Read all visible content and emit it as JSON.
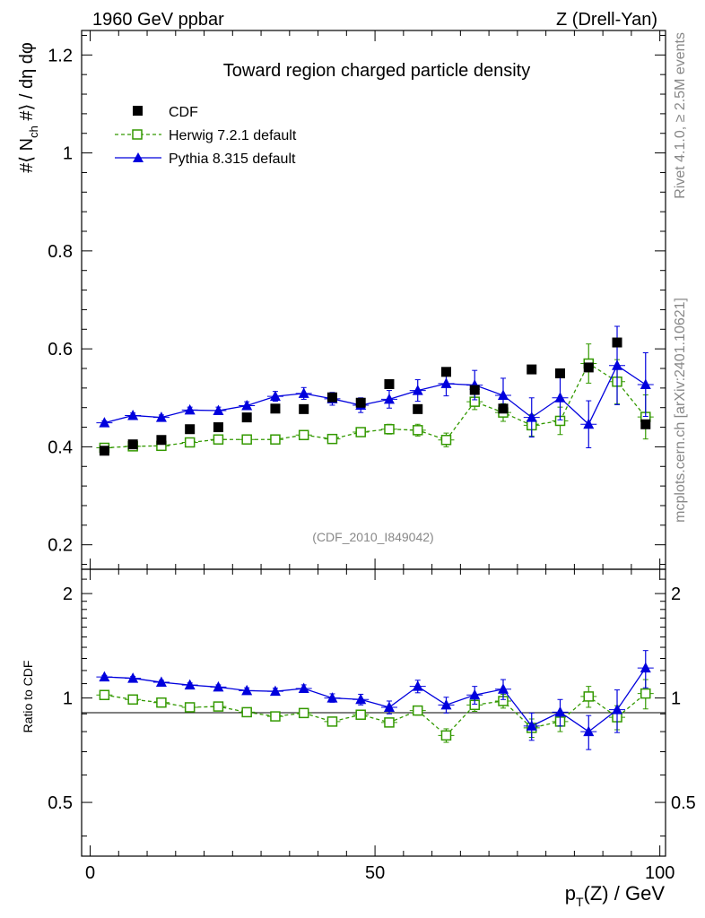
{
  "header": {
    "energy_label": "1960 GeV ppbar",
    "process_label": "Z (Drell-Yan)",
    "right_note_top": "Rivet 4.1.0, ≥ 2.5M events",
    "right_note_bottom": "mcplots.cern.ch [arXiv:2401.10621]"
  },
  "chart_data": [
    {
      "type": "scatter",
      "panel": "main",
      "title": "Toward region charged particle density",
      "analysis_label": "(CDF_2010_I849042)",
      "ylabel": "#⟨ N_ch #⟩ / dη dφ",
      "xlim": [
        -1.5,
        101
      ],
      "ylim": [
        0.15,
        1.25
      ],
      "yticks": [
        0.2,
        0.4,
        0.6,
        0.8,
        1.0,
        1.2
      ],
      "ytick_labels": [
        "0.2",
        "0.4",
        "0.6",
        "0.8",
        "1",
        "1.2"
      ],
      "x": [
        2.5,
        7.5,
        12.5,
        17.5,
        22.5,
        27.5,
        32.5,
        37.5,
        42.5,
        47.5,
        52.5,
        57.5,
        62.5,
        67.5,
        72.5,
        77.5,
        82.5,
        87.5,
        92.5,
        97.5
      ],
      "series": [
        {
          "name": "CDF",
          "marker": "filled-square",
          "color": "#000000",
          "values": [
            0.392,
            0.405,
            0.414,
            0.436,
            0.44,
            0.46,
            0.478,
            0.477,
            0.501,
            0.49,
            0.528,
            0.477,
            0.553,
            0.516,
            0.478,
            0.558,
            0.55,
            0.562,
            0.613,
            0.446
          ]
        },
        {
          "name": "Herwig 7.2.1 default",
          "marker": "open-square",
          "line": "dashed",
          "color": "#339900",
          "values": [
            0.398,
            0.401,
            0.402,
            0.409,
            0.415,
            0.415,
            0.415,
            0.424,
            0.416,
            0.43,
            0.436,
            0.434,
            0.414,
            0.492,
            0.47,
            0.444,
            0.453,
            0.57,
            0.533,
            0.461
          ],
          "errors": [
            0.004,
            0.004,
            0.005,
            0.005,
            0.006,
            0.007,
            0.007,
            0.008,
            0.008,
            0.009,
            0.01,
            0.012,
            0.014,
            0.016,
            0.018,
            0.022,
            0.028,
            0.04,
            0.045,
            0.045
          ]
        },
        {
          "name": "Pythia 8.315 default",
          "marker": "filled-triangle",
          "line": "solid",
          "color": "#0000dd",
          "values": [
            0.449,
            0.464,
            0.46,
            0.475,
            0.474,
            0.484,
            0.503,
            0.509,
            0.498,
            0.485,
            0.497,
            0.515,
            0.529,
            0.526,
            0.505,
            0.46,
            0.5,
            0.446,
            0.566,
            0.527
          ],
          "errors": [
            0.004,
            0.005,
            0.005,
            0.006,
            0.007,
            0.008,
            0.01,
            0.012,
            0.013,
            0.015,
            0.018,
            0.022,
            0.025,
            0.03,
            0.035,
            0.04,
            0.045,
            0.048,
            0.08,
            0.065
          ]
        }
      ]
    },
    {
      "type": "scatter",
      "panel": "ratio",
      "ylabel": "Ratio to CDF",
      "xlabel": "p_T(Z) / GeV",
      "xlim": [
        -1.5,
        101
      ],
      "ylim": [
        0.35,
        2.35
      ],
      "yticks": [
        0.5,
        1.0,
        2.0
      ],
      "ytick_labels": [
        "0.5",
        "1",
        "2"
      ],
      "xticks": [
        0,
        50,
        100
      ],
      "xtick_labels": [
        "0",
        "50",
        "100"
      ],
      "x": [
        2.5,
        7.5,
        12.5,
        17.5,
        22.5,
        27.5,
        32.5,
        37.5,
        42.5,
        47.5,
        52.5,
        57.5,
        62.5,
        67.5,
        72.5,
        77.5,
        82.5,
        87.5,
        92.5,
        97.5
      ],
      "series": [
        {
          "name": "Herwig 7.2.1 default",
          "marker": "open-square",
          "line": "dashed",
          "color": "#339900",
          "values": [
            1.02,
            0.99,
            0.97,
            0.94,
            0.945,
            0.91,
            0.885,
            0.905,
            0.855,
            0.895,
            0.85,
            0.92,
            0.78,
            0.955,
            0.98,
            0.82,
            0.855,
            1.01,
            0.88,
            1.03
          ],
          "errors": [
            0.01,
            0.01,
            0.012,
            0.012,
            0.014,
            0.015,
            0.016,
            0.018,
            0.02,
            0.022,
            0.024,
            0.028,
            0.035,
            0.04,
            0.045,
            0.05,
            0.055,
            0.07,
            0.07,
            0.1
          ]
        },
        {
          "name": "Pythia 8.315 default",
          "marker": "filled-triangle",
          "line": "solid",
          "color": "#0000dd",
          "values": [
            1.15,
            1.14,
            1.11,
            1.09,
            1.075,
            1.05,
            1.045,
            1.065,
            1.0,
            0.99,
            0.94,
            1.08,
            0.955,
            1.02,
            1.06,
            0.83,
            0.91,
            0.8,
            0.925,
            1.22
          ],
          "errors": [
            0.012,
            0.013,
            0.014,
            0.015,
            0.016,
            0.02,
            0.022,
            0.026,
            0.028,
            0.035,
            0.04,
            0.045,
            0.05,
            0.06,
            0.07,
            0.075,
            0.08,
            0.09,
            0.13,
            0.15
          ]
        }
      ]
    }
  ]
}
